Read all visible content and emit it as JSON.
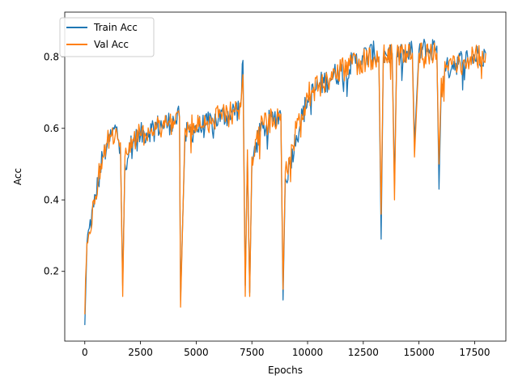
{
  "chart_data": {
    "type": "line",
    "title": "",
    "xlabel": "Epochs",
    "ylabel": "Acc",
    "xlim": [
      -900,
      18900
    ],
    "ylim": [
      0.005,
      0.925
    ],
    "xticks": [
      0,
      2500,
      5000,
      7500,
      10000,
      12500,
      15000,
      17500
    ],
    "xtick_labels": [
      "0",
      "2500",
      "5000",
      "7500",
      "10000",
      "12500",
      "15000",
      "17500"
    ],
    "yticks": [
      0.2,
      0.4,
      0.6,
      0.8
    ],
    "ytick_labels": [
      "0.2",
      "0.4",
      "0.6",
      "0.8"
    ],
    "grid": false,
    "legend_position": "top-left",
    "colors": {
      "train": "#1f77b4",
      "val": "#ff7f0e"
    },
    "series": [
      {
        "name": "Train Acc",
        "color": "#1f77b4",
        "x": [
          0,
          100,
          200,
          400,
          600,
          800,
          1000,
          1200,
          1400,
          1600,
          1700,
          1800,
          2000,
          2500,
          3000,
          3500,
          4000,
          4250,
          4300,
          4500,
          5000,
          5500,
          6000,
          6500,
          7000,
          7100,
          7200,
          7300,
          7400,
          7500,
          7700,
          8000,
          8500,
          8800,
          8900,
          9000,
          9200,
          9500,
          10000,
          10500,
          11000,
          11500,
          12000,
          12500,
          13000,
          13200,
          13300,
          13400,
          13500,
          13800,
          13900,
          14000,
          14500,
          14700,
          14800,
          15000,
          15500,
          15800,
          15900,
          16000,
          16200,
          16500,
          17000,
          17500,
          18000
        ],
        "values": [
          0.05,
          0.28,
          0.32,
          0.38,
          0.45,
          0.52,
          0.55,
          0.58,
          0.6,
          0.55,
          0.16,
          0.5,
          0.55,
          0.58,
          0.6,
          0.61,
          0.62,
          0.63,
          0.12,
          0.58,
          0.6,
          0.61,
          0.63,
          0.64,
          0.66,
          0.79,
          0.16,
          0.52,
          0.14,
          0.5,
          0.56,
          0.6,
          0.63,
          0.64,
          0.12,
          0.46,
          0.5,
          0.58,
          0.68,
          0.72,
          0.74,
          0.76,
          0.78,
          0.8,
          0.81,
          0.8,
          0.29,
          0.8,
          0.81,
          0.81,
          0.44,
          0.8,
          0.8,
          0.82,
          0.56,
          0.82,
          0.82,
          0.83,
          0.43,
          0.72,
          0.76,
          0.78,
          0.79,
          0.8,
          0.81
        ]
      },
      {
        "name": "Val Acc",
        "color": "#ff7f0e",
        "x": [
          0,
          100,
          200,
          400,
          600,
          800,
          1000,
          1200,
          1400,
          1600,
          1700,
          1800,
          2000,
          2500,
          3000,
          3500,
          4000,
          4250,
          4300,
          4500,
          5000,
          5500,
          6000,
          6500,
          7000,
          7100,
          7200,
          7300,
          7400,
          7500,
          7700,
          8000,
          8500,
          8800,
          8900,
          9000,
          9200,
          9500,
          10000,
          10500,
          11000,
          11500,
          12000,
          12500,
          13000,
          13200,
          13300,
          13400,
          13500,
          13800,
          13900,
          14000,
          14500,
          14700,
          14800,
          15000,
          15500,
          15800,
          15900,
          16000,
          16200,
          16500,
          17000,
          17500,
          18000
        ],
        "values": [
          0.08,
          0.28,
          0.31,
          0.4,
          0.46,
          0.52,
          0.56,
          0.58,
          0.6,
          0.56,
          0.13,
          0.52,
          0.56,
          0.58,
          0.6,
          0.61,
          0.62,
          0.63,
          0.1,
          0.6,
          0.61,
          0.62,
          0.63,
          0.64,
          0.66,
          0.75,
          0.13,
          0.54,
          0.13,
          0.52,
          0.57,
          0.61,
          0.63,
          0.64,
          0.15,
          0.48,
          0.52,
          0.6,
          0.69,
          0.72,
          0.74,
          0.76,
          0.78,
          0.79,
          0.8,
          0.8,
          0.36,
          0.8,
          0.8,
          0.8,
          0.4,
          0.8,
          0.8,
          0.81,
          0.52,
          0.81,
          0.81,
          0.81,
          0.5,
          0.74,
          0.77,
          0.78,
          0.79,
          0.8,
          0.81
        ]
      }
    ]
  }
}
